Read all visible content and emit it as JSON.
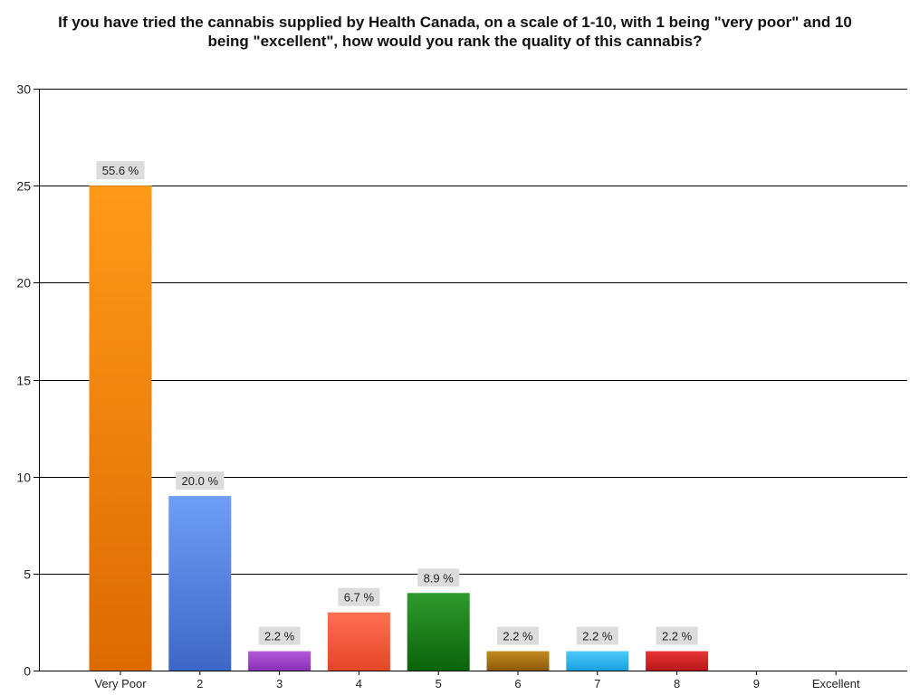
{
  "chart_data": {
    "type": "bar",
    "title": "If you have tried the cannabis supplied by Health Canada, on a scale of 1-10, with 1 being \"very poor\" and 10 being \"excellent\", how would you rank the quality of this cannabis?",
    "xlabel": "",
    "ylabel": "",
    "ylim": [
      0,
      30
    ],
    "yticks": [
      "0",
      "5",
      "10",
      "15",
      "20",
      "25",
      "30"
    ],
    "categories": [
      "Very Poor",
      "2",
      "3",
      "4",
      "5",
      "6",
      "7",
      "8",
      "9",
      "Excellent"
    ],
    "values": [
      25,
      9,
      1,
      3,
      4,
      1,
      1,
      1,
      0,
      0
    ],
    "labels": [
      "55.6 %",
      "20.0 %",
      "2.2 %",
      "6.7 %",
      "8.9 %",
      "2.2 %",
      "2.2 %",
      "2.2 %",
      "",
      ""
    ],
    "colors": [
      [
        "#ff9a1a",
        "#dc6a00"
      ],
      [
        "#6e9ef5",
        "#3c67c8"
      ],
      [
        "#b25ad8",
        "#8a2fb8"
      ],
      [
        "#ff7050",
        "#e44626"
      ],
      [
        "#2e9a2e",
        "#0a640a"
      ],
      [
        "#c08a20",
        "#8c5a0a"
      ],
      [
        "#4ccaf8",
        "#1aa0e0"
      ],
      [
        "#e83434",
        "#b81818"
      ],
      [
        "#cccccc",
        "#999999"
      ],
      [
        "#cccccc",
        "#999999"
      ]
    ],
    "grid": true,
    "legend": "none"
  }
}
